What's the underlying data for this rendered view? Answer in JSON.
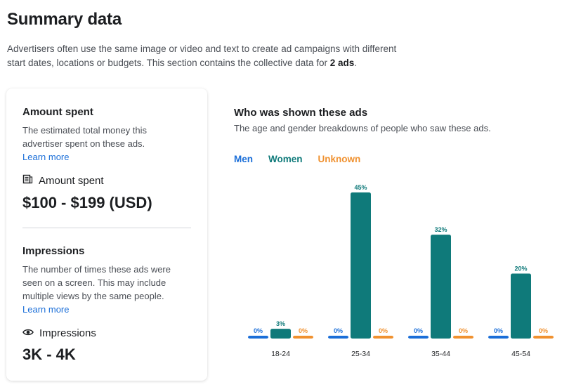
{
  "header": {
    "title": "Summary data",
    "intro_text": "Advertisers often use the same image or video and text to create ad campaigns with different start dates, locations or budgets. This section contains the collective data for ",
    "intro_bold": "2 ads",
    "intro_end": "."
  },
  "amount_spent": {
    "heading": "Amount spent",
    "description": "The estimated total money this advertiser spent on these ads.",
    "learn_more": "Learn more",
    "label": "Amount spent",
    "icon": "money-icon",
    "value": "$100 - $199 (USD)"
  },
  "impressions": {
    "heading": "Impressions",
    "description": "The number of times these ads were seen on a screen. This may include multiple views by the same people.",
    "learn_more": "Learn more",
    "label": "Impressions",
    "icon": "eye-icon",
    "value": "3K - 4K"
  },
  "audience": {
    "heading": "Who was shown these ads",
    "description": "The age and gender breakdowns of people who saw these ads."
  },
  "colors": {
    "men": "#1a6ed8",
    "women": "#0f7a7a",
    "unknown": "#f0912f",
    "link": "#1a6ed8"
  },
  "chart_data": {
    "type": "bar",
    "categories": [
      "18-24",
      "25-34",
      "35-44",
      "45-54"
    ],
    "series": [
      {
        "name": "Men",
        "values": [
          0,
          0,
          0,
          0
        ],
        "labels": [
          "0%",
          "0%",
          "0%",
          "0%"
        ]
      },
      {
        "name": "Women",
        "values": [
          3,
          45,
          32,
          20
        ],
        "labels": [
          "3%",
          "45%",
          "32%",
          "20%"
        ]
      },
      {
        "name": "Unknown",
        "values": [
          0,
          0,
          0,
          0
        ],
        "labels": [
          "0%",
          "0%",
          "0%",
          "0%"
        ]
      }
    ],
    "ylim": [
      0,
      45
    ],
    "legend_position": "top-left",
    "grid": false
  }
}
